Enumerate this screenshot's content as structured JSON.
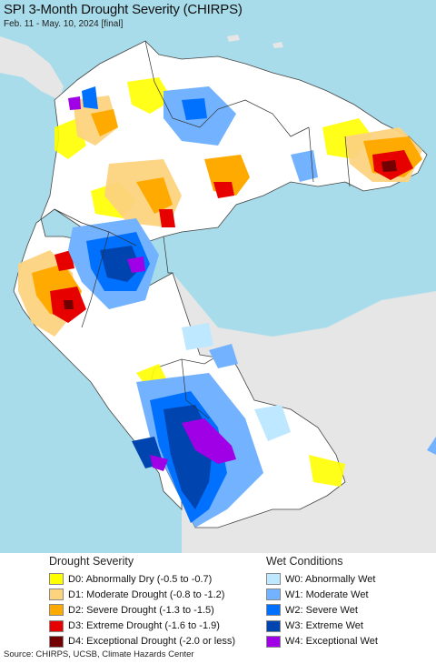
{
  "header": {
    "title": "SPI 3-Month Drought Severity (CHIRPS)",
    "subtitle": "Feb. 11 - May. 10, 2024 [final]"
  },
  "legend": {
    "drought_heading": "Drought Severity",
    "wet_heading": "Wet Conditions",
    "drought_items": [
      {
        "label": "D0: Abnormally Dry (-0.5 to -0.7)",
        "color": "#ffff00"
      },
      {
        "label": "D1: Moderate Drought (-0.8 to -1.2)",
        "color": "#fcd37f"
      },
      {
        "label": "D2: Severe Drought (-1.3 to -1.5)",
        "color": "#ffaa00"
      },
      {
        "label": "D3: Extreme Drought (-1.6 to -1.9)",
        "color": "#e60000"
      },
      {
        "label": "D4: Exceptional Drought (-2.0 or less)",
        "color": "#730000"
      }
    ],
    "wet_items": [
      {
        "label": "W0: Abnormally Wet",
        "color": "#bee8ff"
      },
      {
        "label": "W1: Moderate Wet",
        "color": "#73b2ff"
      },
      {
        "label": "W2: Severe Wet",
        "color": "#0070ff"
      },
      {
        "label": "W3: Extreme Wet",
        "color": "#0044b0"
      },
      {
        "label": "W4: Exceptional Wet",
        "color": "#a000e6"
      }
    ]
  },
  "colors": {
    "ocean": "#a8dcea",
    "land_outside": "#e6e6e6",
    "land_normal": "#ffffff",
    "border": "#444444"
  },
  "footer": {
    "source": "Source: CHIRPS, UCSB, Climate Hazards Center"
  }
}
